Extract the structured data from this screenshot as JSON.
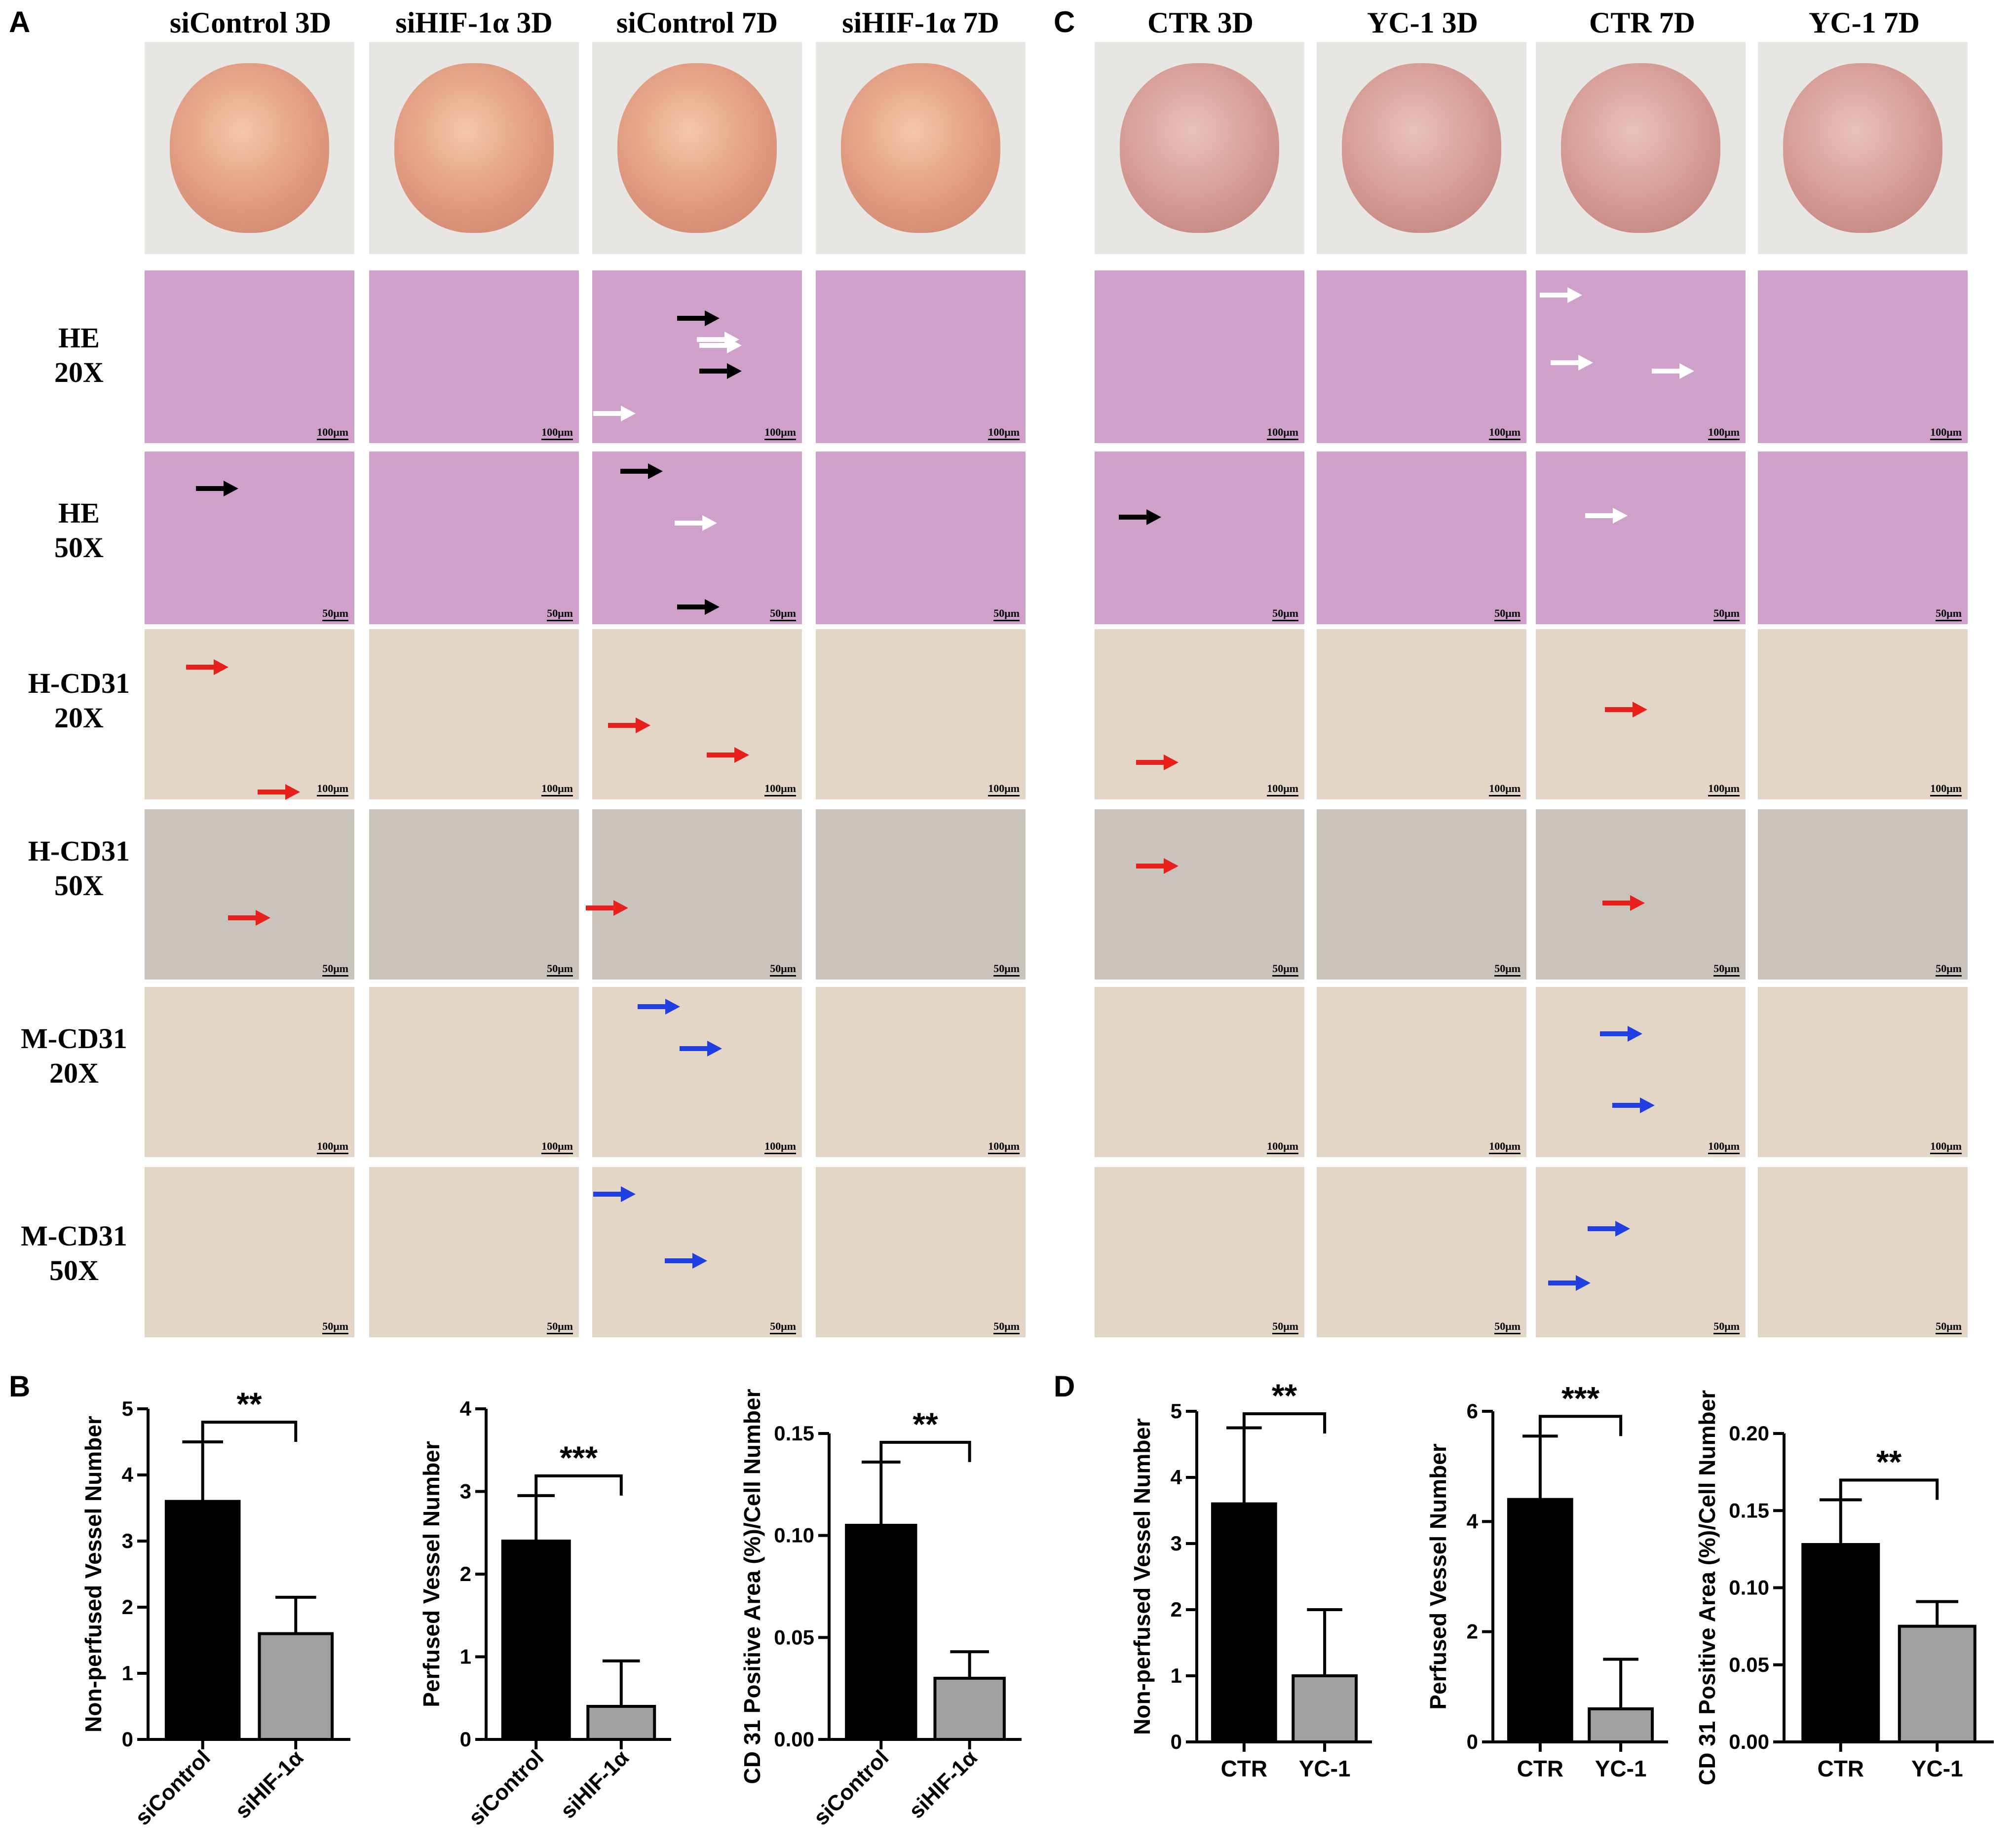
{
  "panels": {
    "A": "A",
    "B": "B",
    "C": "C",
    "D": "D"
  },
  "panel_A": {
    "columns": [
      "siControl 3D",
      "siHIF-1α 3D",
      "siControl 7D",
      "siHIF-1α 7D"
    ],
    "rows": [
      {
        "line1": "HE",
        "line2": "20X",
        "scale": "100μm"
      },
      {
        "line1": "HE",
        "line2": "50X",
        "scale": "50μm"
      },
      {
        "line1": "H-CD31",
        "line2": "20X",
        "scale": "100μm"
      },
      {
        "line1": "H-CD31",
        "line2": "50X",
        "scale": "50μm"
      },
      {
        "line1": "M-CD31",
        "line2": "20X",
        "scale": "100μm"
      },
      {
        "line1": "M-CD31",
        "line2": "50X",
        "scale": "50μm"
      }
    ]
  },
  "panel_C": {
    "columns": [
      "CTR 3D",
      "YC-1 3D",
      "CTR 7D",
      "YC-1 7D"
    ]
  },
  "colors": {
    "bar_black": "#000000",
    "bar_grey": "#a0a0a0",
    "arrow_black": "#000000",
    "arrow_white": "#ffffff",
    "arrow_red": "#e8201c",
    "arrow_blue": "#1f3fe0",
    "he_stain": "#cfa0c9",
    "ihc_stain": "#e3d6c7"
  },
  "chart_data": [
    {
      "type": "bar",
      "panel": "B",
      "categories": [
        "siControl",
        "siHIF-1α"
      ],
      "values": [
        3.6,
        1.6
      ],
      "errors": [
        0.9,
        0.55
      ],
      "ylabel": "Non-perfused Vessel Number",
      "ylim": [
        0,
        5
      ],
      "yticks": [
        "0",
        "1",
        "2",
        "3",
        "4",
        "5"
      ],
      "significance": "**",
      "colors": [
        "#000000",
        "#a0a0a0"
      ],
      "rotated_labels": true
    },
    {
      "type": "bar",
      "panel": "B",
      "categories": [
        "siControl",
        "siHIF-1α"
      ],
      "values": [
        2.4,
        0.4
      ],
      "errors": [
        0.55,
        0.55
      ],
      "ylabel": "Perfused Vessel Number",
      "ylim": [
        0,
        4
      ],
      "yticks": [
        "0",
        "1",
        "2",
        "3",
        "4"
      ],
      "significance": "***",
      "colors": [
        "#000000",
        "#a0a0a0"
      ],
      "rotated_labels": true
    },
    {
      "type": "bar",
      "panel": "B",
      "categories": [
        "siControl",
        "siHIF-1α"
      ],
      "values": [
        0.105,
        0.03
      ],
      "errors": [
        0.031,
        0.013
      ],
      "ylabel": "CD 31 Positive Area (%)/Cell Number",
      "ylim": [
        0,
        0.15
      ],
      "yticks": [
        "0.00",
        "0.05",
        "0.10",
        "0.15"
      ],
      "significance": "**",
      "colors": [
        "#000000",
        "#a0a0a0"
      ],
      "rotated_labels": true
    },
    {
      "type": "bar",
      "panel": "D",
      "categories": [
        "CTR",
        "YC-1"
      ],
      "values": [
        3.6,
        1.0
      ],
      "errors": [
        1.15,
        1.0
      ],
      "ylabel": "Non-perfused Vessel Number",
      "ylim": [
        0,
        5
      ],
      "yticks": [
        "0",
        "1",
        "2",
        "3",
        "4",
        "5"
      ],
      "significance": "**",
      "colors": [
        "#000000",
        "#a0a0a0"
      ],
      "rotated_labels": false
    },
    {
      "type": "bar",
      "panel": "D",
      "categories": [
        "CTR",
        "YC-1"
      ],
      "values": [
        4.4,
        0.6
      ],
      "errors": [
        1.15,
        0.9
      ],
      "ylabel": "Perfused Vessel Number",
      "ylim": [
        0,
        6
      ],
      "yticks": [
        "0",
        "2",
        "4",
        "6"
      ],
      "significance": "***",
      "colors": [
        "#000000",
        "#a0a0a0"
      ],
      "rotated_labels": false
    },
    {
      "type": "bar",
      "panel": "D",
      "categories": [
        "CTR",
        "YC-1"
      ],
      "values": [
        0.128,
        0.075
      ],
      "errors": [
        0.029,
        0.016
      ],
      "ylabel": "CD 31 Positive Area (%)/Cell Number",
      "ylim": [
        0,
        0.2
      ],
      "yticks": [
        "0.00",
        "0.05",
        "0.10",
        "0.15",
        "0.20"
      ],
      "significance": "**",
      "colors": [
        "#000000",
        "#a0a0a0"
      ],
      "rotated_labels": false
    }
  ]
}
